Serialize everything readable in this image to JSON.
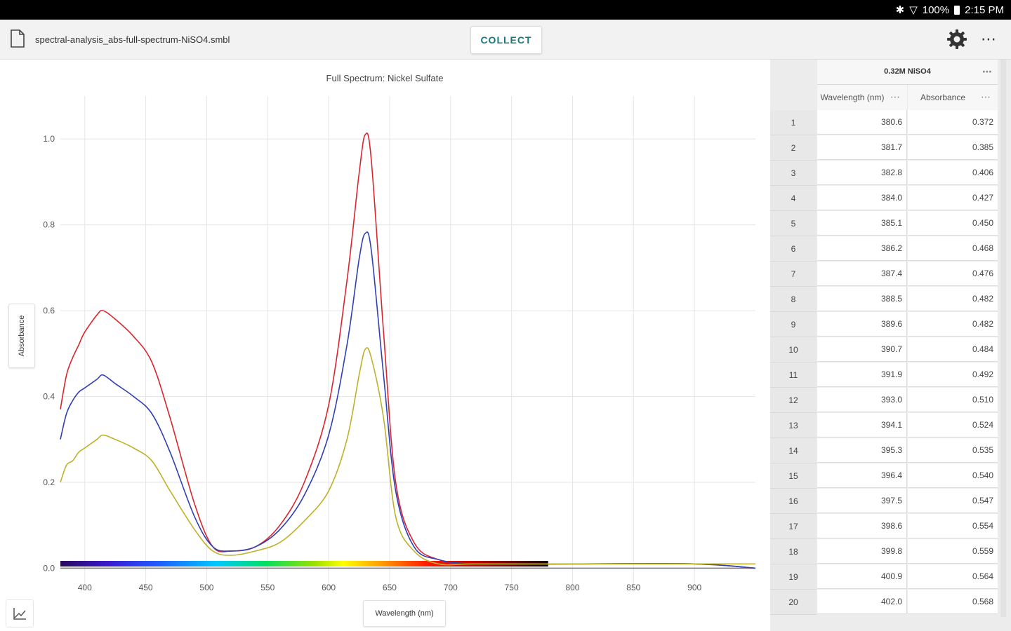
{
  "status_bar": {
    "battery": "100%",
    "time": "2:15 PM"
  },
  "toolbar": {
    "file_name": "spectral-analysis_abs-full-spectrum-NiSO4.smbl",
    "collect_label": "COLLECT",
    "icons": [
      "file-icon",
      "gear-icon",
      "more-icon"
    ]
  },
  "chart_data": {
    "type": "line",
    "title": "Full Spectrum: Nickel Sulfate",
    "xlabel": "Wavelength (nm)",
    "ylabel": "Absorbance",
    "xlim": [
      380,
      950
    ],
    "ylim": [
      -0.05,
      1.1
    ],
    "xticks": [
      400,
      450,
      500,
      550,
      600,
      650,
      700,
      750,
      800,
      850,
      900
    ],
    "yticks": [
      0.0,
      0.2,
      0.4,
      0.6,
      0.8,
      1.0
    ],
    "grid": true,
    "visible_spectrum_bar": {
      "from_nm": 380,
      "to_nm": 780
    },
    "colors": [
      "#d9262e",
      "#2f3fb6",
      "#bfb02a"
    ],
    "series": [
      {
        "x": [
          380,
          385,
          390,
          395,
          400,
          410,
          415,
          425,
          440,
          455,
          470,
          490,
          505,
          520,
          540,
          560,
          580,
          600,
          615,
          625,
          630,
          635,
          645,
          655,
          670,
          690,
          720,
          800,
          900,
          950
        ],
        "y": [
          0.37,
          0.45,
          0.49,
          0.52,
          0.55,
          0.59,
          0.6,
          0.58,
          0.54,
          0.48,
          0.35,
          0.15,
          0.05,
          0.04,
          0.05,
          0.1,
          0.2,
          0.38,
          0.67,
          0.92,
          1.01,
          0.95,
          0.55,
          0.2,
          0.06,
          0.02,
          0.01,
          0.01,
          0.01,
          0.0
        ]
      },
      {
        "x": [
          380,
          385,
          390,
          395,
          400,
          410,
          415,
          425,
          440,
          455,
          470,
          490,
          505,
          520,
          540,
          560,
          580,
          600,
          615,
          625,
          630,
          635,
          645,
          655,
          670,
          690,
          720,
          800,
          900,
          950
        ],
        "y": [
          0.3,
          0.36,
          0.39,
          0.41,
          0.42,
          0.44,
          0.45,
          0.43,
          0.4,
          0.36,
          0.27,
          0.12,
          0.05,
          0.04,
          0.05,
          0.09,
          0.17,
          0.31,
          0.52,
          0.72,
          0.78,
          0.74,
          0.45,
          0.18,
          0.05,
          0.02,
          0.01,
          0.01,
          0.01,
          0.0
        ]
      },
      {
        "x": [
          380,
          385,
          390,
          395,
          400,
          410,
          415,
          425,
          440,
          455,
          470,
          490,
          505,
          520,
          540,
          560,
          580,
          600,
          615,
          625,
          630,
          635,
          645,
          655,
          670,
          690,
          720,
          800,
          900,
          950
        ],
        "y": [
          0.2,
          0.24,
          0.25,
          0.27,
          0.28,
          0.3,
          0.31,
          0.3,
          0.28,
          0.25,
          0.18,
          0.09,
          0.04,
          0.03,
          0.04,
          0.06,
          0.11,
          0.18,
          0.3,
          0.45,
          0.51,
          0.49,
          0.35,
          0.12,
          0.04,
          0.01,
          0.01,
          0.01,
          0.01,
          0.01
        ]
      }
    ]
  },
  "table": {
    "dataset_name": "0.32M NiSO4",
    "columns": [
      "Wavelength (nm)",
      "Absorbance"
    ],
    "rows": [
      {
        "index": "1",
        "wavelength": "380.6",
        "absorbance": "0.372"
      },
      {
        "index": "2",
        "wavelength": "381.7",
        "absorbance": "0.385"
      },
      {
        "index": "3",
        "wavelength": "382.8",
        "absorbance": "0.406"
      },
      {
        "index": "4",
        "wavelength": "384.0",
        "absorbance": "0.427"
      },
      {
        "index": "5",
        "wavelength": "385.1",
        "absorbance": "0.450"
      },
      {
        "index": "6",
        "wavelength": "386.2",
        "absorbance": "0.468"
      },
      {
        "index": "7",
        "wavelength": "387.4",
        "absorbance": "0.476"
      },
      {
        "index": "8",
        "wavelength": "388.5",
        "absorbance": "0.482"
      },
      {
        "index": "9",
        "wavelength": "389.6",
        "absorbance": "0.482"
      },
      {
        "index": "10",
        "wavelength": "390.7",
        "absorbance": "0.484"
      },
      {
        "index": "11",
        "wavelength": "391.9",
        "absorbance": "0.492"
      },
      {
        "index": "12",
        "wavelength": "393.0",
        "absorbance": "0.510"
      },
      {
        "index": "13",
        "wavelength": "394.1",
        "absorbance": "0.524"
      },
      {
        "index": "14",
        "wavelength": "395.3",
        "absorbance": "0.535"
      },
      {
        "index": "15",
        "wavelength": "396.4",
        "absorbance": "0.540"
      },
      {
        "index": "16",
        "wavelength": "397.5",
        "absorbance": "0.547"
      },
      {
        "index": "17",
        "wavelength": "398.6",
        "absorbance": "0.554"
      },
      {
        "index": "18",
        "wavelength": "399.8",
        "absorbance": "0.559"
      },
      {
        "index": "19",
        "wavelength": "400.9",
        "absorbance": "0.564"
      },
      {
        "index": "20",
        "wavelength": "402.0",
        "absorbance": "0.568"
      }
    ]
  }
}
